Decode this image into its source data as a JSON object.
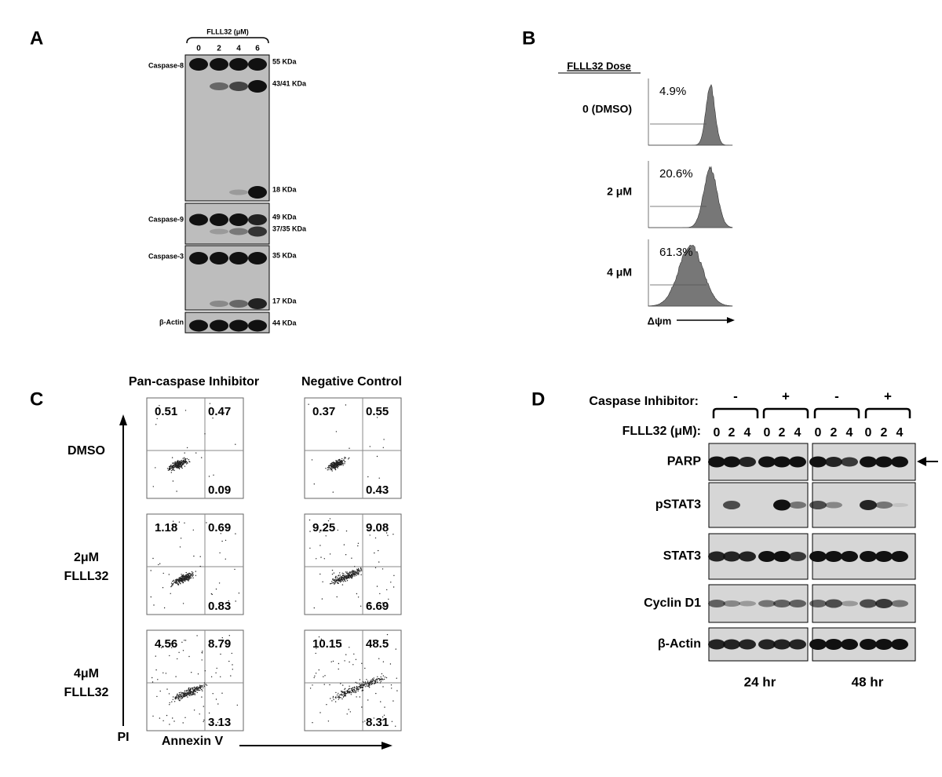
{
  "panel_a": {
    "label": "A",
    "treatment": "FLLL32 (μM)",
    "lanes": [
      "0",
      "2",
      "4",
      "6"
    ],
    "blots": [
      {
        "name": "Caspase-8",
        "markers": [
          "55 KDa",
          "43/41 KDa",
          "18 KDa"
        ]
      },
      {
        "name": "Caspase-9",
        "markers": [
          "49 KDa",
          "37/35 KDa"
        ]
      },
      {
        "name": "Caspase-3",
        "markers": [
          "35 KDa",
          "17 KDa"
        ]
      },
      {
        "name": "β-Actin",
        "markers": [
          "44 KDa"
        ]
      }
    ]
  },
  "panel_b": {
    "label": "B",
    "heading": "FLLL32 Dose",
    "rows": [
      {
        "dose": "0 (DMSO)",
        "percent": "4.9%"
      },
      {
        "dose": "2 μM",
        "percent": "20.6%"
      },
      {
        "dose": "4 μM",
        "percent": "61.3%"
      }
    ],
    "x_label": "Δψm"
  },
  "panel_c": {
    "label": "C",
    "columns": [
      "Pan-caspase Inhibitor",
      "Negative Control"
    ],
    "rows": [
      {
        "label": [
          "DMSO"
        ],
        "plots": [
          {
            "ul": "0.51",
            "ur": "0.47",
            "lr": "0.09"
          },
          {
            "ul": "0.37",
            "ur": "0.55",
            "lr": "0.43"
          }
        ]
      },
      {
        "label": [
          "2μM",
          "FLLL32"
        ],
        "plots": [
          {
            "ul": "1.18",
            "ur": "0.69",
            "lr": "0.83"
          },
          {
            "ul": "9.25",
            "ur": "9.08",
            "lr": "6.69"
          }
        ]
      },
      {
        "label": [
          "4μM",
          "FLLL32"
        ],
        "plots": [
          {
            "ul": "4.56",
            "ur": "8.79",
            "lr": "3.13"
          },
          {
            "ul": "10.15",
            "ur": "48.5",
            "lr": "8.31"
          }
        ]
      }
    ],
    "y_label": "PI",
    "x_label": "Annexin V"
  },
  "panel_d": {
    "label": "D",
    "inhibitor_label": "Caspase Inhibitor:",
    "inhibitor_signs": [
      "-",
      "+",
      "-",
      "+"
    ],
    "dose_label": "FLLL32 (μM):",
    "lanes": [
      "0",
      "2",
      "4",
      "0",
      "2",
      "4",
      "0",
      "2",
      "4",
      "0",
      "2",
      "4"
    ],
    "blots": [
      "PARP",
      "pSTAT3",
      "STAT3",
      "Cyclin D1",
      "β-Actin"
    ],
    "times": [
      "24 hr",
      "48 hr"
    ]
  }
}
